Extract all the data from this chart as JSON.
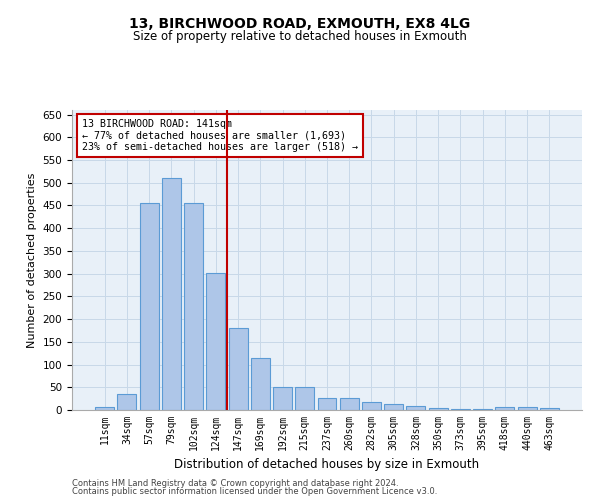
{
  "title_line1": "13, BIRCHWOOD ROAD, EXMOUTH, EX8 4LG",
  "title_line2": "Size of property relative to detached houses in Exmouth",
  "xlabel": "Distribution of detached houses by size in Exmouth",
  "ylabel": "Number of detached properties",
  "categories": [
    "11sqm",
    "34sqm",
    "57sqm",
    "79sqm",
    "102sqm",
    "124sqm",
    "147sqm",
    "169sqm",
    "192sqm",
    "215sqm",
    "237sqm",
    "260sqm",
    "282sqm",
    "305sqm",
    "328sqm",
    "350sqm",
    "373sqm",
    "395sqm",
    "418sqm",
    "440sqm",
    "463sqm"
  ],
  "values": [
    7,
    35,
    456,
    510,
    456,
    302,
    180,
    115,
    50,
    50,
    27,
    27,
    18,
    13,
    9,
    5,
    2,
    2,
    7,
    7,
    4
  ],
  "bar_color": "#aec6e8",
  "bar_edge_color": "#5b9bd5",
  "ylim": [
    0,
    660
  ],
  "yticks": [
    0,
    50,
    100,
    150,
    200,
    250,
    300,
    350,
    400,
    450,
    500,
    550,
    600,
    650
  ],
  "vline_x": 5.5,
  "vline_color": "#c00000",
  "annotation_text_line1": "13 BIRCHWOOD ROAD: 141sqm",
  "annotation_text_line2": "← 77% of detached houses are smaller (1,693)",
  "annotation_text_line3": "23% of semi-detached houses are larger (518) →",
  "annotation_box_color": "#ffffff",
  "annotation_box_edge_color": "#c00000",
  "bg_color": "#ffffff",
  "plot_bg_color": "#e8f0f8",
  "grid_color": "#c8d8e8",
  "footnote_line1": "Contains HM Land Registry data © Crown copyright and database right 2024.",
  "footnote_line2": "Contains public sector information licensed under the Open Government Licence v3.0."
}
